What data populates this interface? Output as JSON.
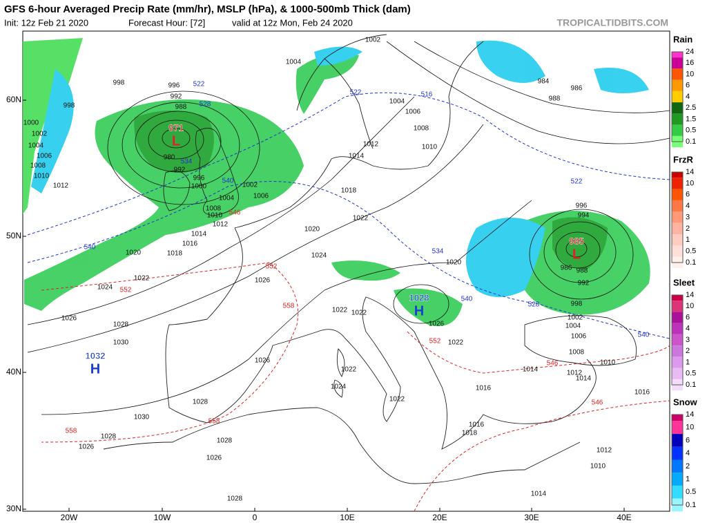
{
  "header": {
    "title": "GFS 6-hour Averaged Precip Rate (mm/hr), MSLP (hPa), & 1000-500mb Thick (dam)",
    "init": "Init: 12z Feb 21 2020",
    "forecast_hour": "Forecast Hour: [72]",
    "valid": "valid at 12z Mon, Feb 24 2020",
    "site": "TROPICALTIDBITS.COM"
  },
  "map": {
    "lat_labels": [
      "60N",
      "50N",
      "40N",
      "30N"
    ],
    "lon_labels": [
      "20W",
      "10W",
      "0",
      "10E",
      "20E",
      "30E",
      "40E"
    ],
    "pressure_centers": [
      {
        "value": "971",
        "symbol": "L",
        "color": "#e0202a"
      },
      {
        "value": "985",
        "symbol": "L",
        "color": "#e0202a"
      },
      {
        "value": "1028",
        "symbol": "H",
        "color": "#1a3fd0"
      },
      {
        "value": "1032",
        "symbol": "H",
        "color": "#1a3fd0"
      }
    ],
    "isobar_labels": [
      "998",
      "996",
      "992",
      "988",
      "1000",
      "998",
      "1002",
      "1004",
      "1006",
      "1008",
      "1010",
      "1012",
      "980",
      "992",
      "996",
      "1000",
      "1004",
      "1002",
      "1006",
      "1008",
      "1010",
      "1012",
      "1014",
      "1016",
      "1018",
      "1020",
      "1022",
      "1024",
      "1026",
      "1028",
      "1030",
      "1026",
      "1026",
      "1028",
      "1030",
      "1028",
      "1026",
      "1026",
      "1028",
      "1028",
      "1022",
      "1018",
      "1014",
      "1012",
      "1004",
      "1002",
      "1004",
      "1006",
      "1008",
      "1010",
      "984",
      "986",
      "988",
      "996",
      "994",
      "986",
      "988",
      "992",
      "998",
      "1002",
      "1004",
      "1006",
      "1008",
      "1010",
      "1012",
      "1014",
      "1014",
      "1016",
      "1016",
      "1016",
      "1018",
      "1012",
      "1010",
      "1020",
      "1022",
      "1022",
      "1024",
      "1026",
      "1022",
      "1022",
      "1024",
      "1022",
      "1020",
      "1014"
    ],
    "thickness_labels": [
      {
        "text": "522",
        "color": "#2233cc"
      },
      {
        "text": "528",
        "color": "#2233cc"
      },
      {
        "text": "522",
        "color": "#2233cc"
      },
      {
        "text": "516",
        "color": "#2233cc"
      },
      {
        "text": "534",
        "color": "#2233cc"
      },
      {
        "text": "540",
        "color": "#2233cc"
      },
      {
        "text": "540",
        "color": "#2233cc"
      },
      {
        "text": "522",
        "color": "#2233cc"
      },
      {
        "text": "534",
        "color": "#2233cc"
      },
      {
        "text": "540",
        "color": "#2233cc"
      },
      {
        "text": "528",
        "color": "#2233cc"
      },
      {
        "text": "540",
        "color": "#2233cc"
      },
      {
        "text": "552",
        "color": "#dd2222"
      },
      {
        "text": "558",
        "color": "#dd2222"
      },
      {
        "text": "552",
        "color": "#dd2222"
      },
      {
        "text": "552",
        "color": "#dd2222"
      },
      {
        "text": "546",
        "color": "#dd2222"
      },
      {
        "text": "546",
        "color": "#dd2222"
      },
      {
        "text": "558",
        "color": "#dd2222"
      },
      {
        "text": "558",
        "color": "#dd2222"
      },
      {
        "text": "546",
        "color": "#dd2222"
      }
    ]
  },
  "legends": [
    {
      "title": "Rain",
      "labels": [
        "24",
        "16",
        "10",
        "6",
        "4",
        "2.5",
        "1.5",
        "0.5",
        "0.1"
      ],
      "colors": [
        "#ff33cc",
        "#cc0099",
        "#ff5500",
        "#ff9900",
        "#ffcc00",
        "#116611",
        "#1f9922",
        "#33cc44",
        "#77ff77"
      ]
    },
    {
      "title": "FrzR",
      "labels": [
        "14",
        "10",
        "6",
        "4",
        "3",
        "2",
        "1",
        "0.5",
        "0.1"
      ],
      "colors": [
        "#cc0000",
        "#ee2200",
        "#ff5500",
        "#ff7744",
        "#ff9977",
        "#ffb3a0",
        "#ffccc0",
        "#ffe0d8",
        "#fff0ec"
      ]
    },
    {
      "title": "Sleet",
      "labels": [
        "14",
        "10",
        "6",
        "4",
        "3",
        "2",
        "1",
        "0.5",
        "0.1"
      ],
      "colors": [
        "#cc0044",
        "#dd3377",
        "#aa1199",
        "#bb33bb",
        "#cc55cc",
        "#cc77dd",
        "#dd99ee",
        "#e8bbf4",
        "#f3ddfa"
      ]
    },
    {
      "title": "Snow",
      "labels": [
        "14",
        "10",
        "6",
        "4",
        "2",
        "1",
        "0.5",
        "0.1"
      ],
      "colors": [
        "#cc0066",
        "#ff3399",
        "#0000bb",
        "#0033ff",
        "#0077ff",
        "#00aaff",
        "#33ddff",
        "#99f5ff"
      ]
    }
  ]
}
